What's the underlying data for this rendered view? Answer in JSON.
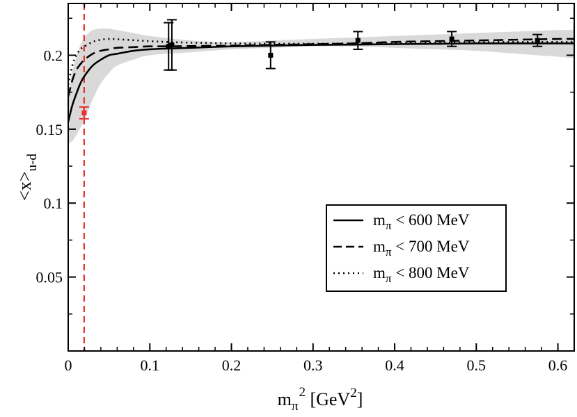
{
  "chart_data": {
    "type": "scatter",
    "title": "",
    "xlabel": {
      "base": "m",
      "sub": "π",
      "sup": "2",
      "unit_open": " [GeV",
      "unit_sup": "2",
      "unit_close": "]"
    },
    "ylabel": {
      "main": "<x>",
      "sub": "u-d"
    },
    "xlim": [
      0,
      0.62
    ],
    "ylim": [
      0,
      0.235
    ],
    "x_ticks": [
      {
        "value": 0,
        "label": "0"
      },
      {
        "value": 0.1,
        "label": "0.1"
      },
      {
        "value": 0.2,
        "label": "0.2"
      },
      {
        "value": 0.3,
        "label": "0.3"
      },
      {
        "value": 0.4,
        "label": "0.4"
      },
      {
        "value": 0.5,
        "label": "0.5"
      },
      {
        "value": 0.6,
        "label": "0.6"
      }
    ],
    "y_ticks": [
      {
        "value": 0.05,
        "label": "0.05"
      },
      {
        "value": 0.1,
        "label": "0.1"
      },
      {
        "value": 0.15,
        "label": "0.15"
      },
      {
        "value": 0.2,
        "label": "0.2"
      }
    ],
    "physical_point": {
      "x": 0.0195,
      "y": 0.161,
      "err": 0.004,
      "color": "#e8312c"
    },
    "vertical_line": {
      "x": 0.0195,
      "color": "#e8312c",
      "style": "dashed"
    },
    "lattice_points": [
      {
        "x": 0.123,
        "y": 0.206,
        "err": 0.016
      },
      {
        "x": 0.127,
        "y": 0.207,
        "err": 0.017
      },
      {
        "x": 0.248,
        "y": 0.2,
        "err": 0.009
      },
      {
        "x": 0.355,
        "y": 0.21,
        "err": 0.006
      },
      {
        "x": 0.47,
        "y": 0.211,
        "err": 0.005
      },
      {
        "x": 0.575,
        "y": 0.21,
        "err": 0.004
      }
    ],
    "band": {
      "x": [
        0,
        0.005,
        0.01,
        0.015,
        0.02,
        0.025,
        0.03,
        0.04,
        0.05,
        0.06,
        0.08,
        0.1,
        0.15,
        0.2,
        0.25,
        0.3,
        0.35,
        0.4,
        0.45,
        0.5,
        0.55,
        0.6,
        0.62
      ],
      "upper": [
        0.172,
        0.189,
        0.199,
        0.207,
        0.212,
        0.215,
        0.217,
        0.218,
        0.218,
        0.217,
        0.215,
        0.213,
        0.21,
        0.209,
        0.21,
        0.211,
        0.212,
        0.213,
        0.214,
        0.215,
        0.216,
        0.217,
        0.217
      ],
      "lower": [
        0.14,
        0.142,
        0.146,
        0.151,
        0.156,
        0.163,
        0.17,
        0.181,
        0.188,
        0.193,
        0.197,
        0.2,
        0.202,
        0.204,
        0.205,
        0.206,
        0.206,
        0.205,
        0.204,
        0.203,
        0.201,
        0.199,
        0.198
      ]
    },
    "series": [
      {
        "name": "m_π < 600 MeV",
        "style": "solid",
        "x": [
          0,
          0.005,
          0.01,
          0.015,
          0.02,
          0.03,
          0.04,
          0.05,
          0.06,
          0.08,
          0.1,
          0.12,
          0.15,
          0.2,
          0.25,
          0.3,
          0.35,
          0.4,
          0.45,
          0.5,
          0.55,
          0.6,
          0.62
        ],
        "y": [
          0.155,
          0.166,
          0.174,
          0.181,
          0.186,
          0.193,
          0.197,
          0.2,
          0.201,
          0.203,
          0.204,
          0.2045,
          0.205,
          0.206,
          0.2065,
          0.207,
          0.2072,
          0.2075,
          0.2077,
          0.208,
          0.208,
          0.208,
          0.208
        ]
      },
      {
        "name": "m_π < 700 MeV",
        "style": "dashed",
        "x": [
          0,
          0.005,
          0.01,
          0.015,
          0.02,
          0.03,
          0.04,
          0.05,
          0.06,
          0.08,
          0.1,
          0.12,
          0.15,
          0.2,
          0.25,
          0.3,
          0.35,
          0.4,
          0.45,
          0.5,
          0.55,
          0.6,
          0.62
        ],
        "y": [
          0.172,
          0.183,
          0.19,
          0.194,
          0.197,
          0.201,
          0.203,
          0.204,
          0.205,
          0.2055,
          0.206,
          0.206,
          0.2062,
          0.2065,
          0.207,
          0.2075,
          0.208,
          0.209,
          0.2095,
          0.21,
          0.2105,
          0.211,
          0.211
        ]
      },
      {
        "name": "m_π < 800 MeV",
        "style": "dotted",
        "x": [
          0,
          0.005,
          0.01,
          0.015,
          0.02,
          0.03,
          0.04,
          0.05,
          0.06,
          0.08,
          0.1,
          0.12,
          0.15,
          0.2,
          0.25,
          0.3,
          0.35,
          0.4,
          0.45,
          0.5,
          0.55,
          0.6,
          0.62
        ],
        "y": [
          0.18,
          0.193,
          0.2,
          0.204,
          0.206,
          0.209,
          0.2105,
          0.211,
          0.2108,
          0.2102,
          0.2095,
          0.209,
          0.2085,
          0.208,
          0.2078,
          0.2078,
          0.208,
          0.2082,
          0.2085,
          0.2088,
          0.209,
          0.209,
          0.209
        ]
      }
    ],
    "legend": {
      "position": "center-right",
      "entries": [
        {
          "prefix": "m",
          "sub": "π",
          "suffix": " < 600 MeV",
          "style": "solid"
        },
        {
          "prefix": "m",
          "sub": "π",
          "suffix": " < 700 MeV",
          "style": "dashed"
        },
        {
          "prefix": "m",
          "sub": "π",
          "suffix": " < 800 MeV",
          "style": "dotted"
        }
      ]
    }
  }
}
